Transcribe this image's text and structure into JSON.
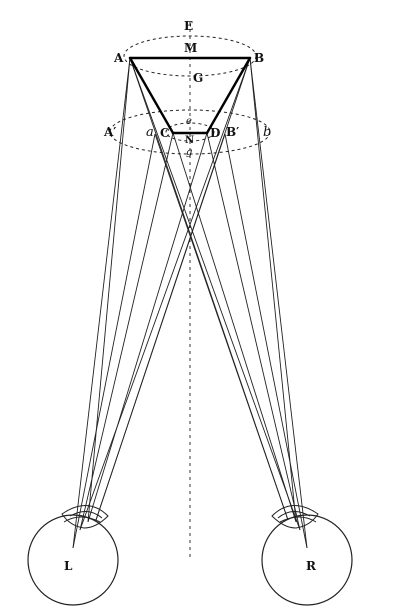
{
  "labels": {
    "A": "A",
    "B": "B",
    "E": "E",
    "M": "M",
    "G": "G",
    "A_prime": "A′",
    "a": "a",
    "C": "C",
    "e": "e",
    "N": "N",
    "g": "g",
    "D": "D",
    "B_prime": "B′",
    "b": "b",
    "L": "L",
    "R": "R"
  }
}
